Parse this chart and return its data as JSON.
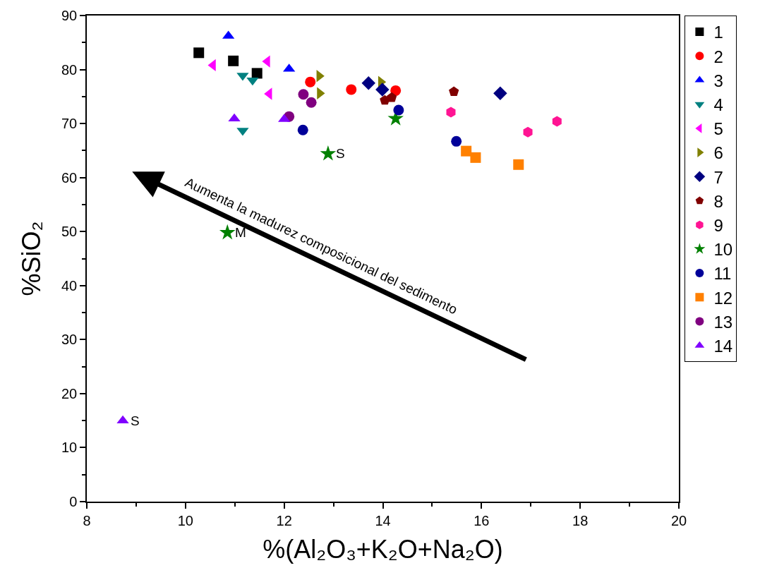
{
  "chart_data": {
    "type": "scatter",
    "xlabel": "%(Al₂O₃+K₂O+Na₂O)",
    "ylabel": "%SiO₂",
    "xlim": [
      8,
      20
    ],
    "xticks": [
      8,
      {
        "value": 9,
        "label": null
      },
      10,
      {
        "value": 11,
        "label": null
      },
      12,
      {
        "value": 13,
        "label": null
      },
      14,
      {
        "value": 15,
        "label": null
      },
      16,
      {
        "value": 17,
        "label": null
      },
      18,
      {
        "value": 19,
        "label": null
      },
      20
    ],
    "ylim": [
      0,
      90
    ],
    "yticks": [
      0,
      {
        "value": 5,
        "label": null
      },
      10,
      {
        "value": 15,
        "label": null
      },
      20,
      {
        "value": 25,
        "label": null
      },
      30,
      {
        "value": 35,
        "label": null
      },
      40,
      {
        "value": 45,
        "label": null
      },
      50,
      {
        "value": 55,
        "label": null
      },
      60,
      {
        "value": 65,
        "label": null
      },
      70,
      {
        "value": 75,
        "label": null
      },
      80,
      {
        "value": 85,
        "label": null
      },
      90
    ],
    "grid": false,
    "legend": "top right",
    "annotations": [
      "Aumenta la madurez composicional del sedimento",
      {
        "text": "S",
        "x": 12.89,
        "y": 64.4
      },
      {
        "text": "M",
        "x": 10.85,
        "y": 49.8
      },
      {
        "text": "S",
        "x": 8.73,
        "y": 15
      }
    ],
    "series": [
      {
        "name": "1",
        "color": "#000000",
        "marker": "square",
        "x": [
          10.27,
          10.97,
          11.45
        ],
        "values": [
          83.1,
          81.6,
          79.3
        ]
      },
      {
        "name": "2",
        "color": "#ff0000",
        "marker": "circle",
        "x": [
          12.53,
          13.36,
          14.26
        ],
        "values": [
          77.7,
          76.3,
          76.1
        ]
      },
      {
        "name": "3",
        "color": "#0000ff",
        "marker": "triangle",
        "x": [
          10.87,
          12.1
        ],
        "values": [
          86.2,
          80.1
        ]
      },
      {
        "name": "4",
        "color": "#008080",
        "marker": "triangle-down",
        "x": [
          11.16,
          11.36,
          11.16
        ],
        "values": [
          78.9,
          78.0,
          68.7
        ]
      },
      {
        "name": "5",
        "color": "#ff00ff",
        "marker": "triangle-left",
        "x": [
          10.56,
          11.66,
          11.7
        ],
        "values": [
          80.8,
          81.5,
          75.5
        ]
      },
      {
        "name": "6",
        "color": "#808000",
        "marker": "triangle-right",
        "x": [
          12.71,
          12.72,
          13.96
        ],
        "values": [
          78.8,
          75.6,
          77.7
        ]
      },
      {
        "name": "7",
        "color": "#000080",
        "marker": "diamond",
        "x": [
          13.71,
          13.99,
          16.38
        ],
        "values": [
          77.5,
          76.3,
          75.6
        ]
      },
      {
        "name": "8",
        "color": "#800000",
        "x": [
          14.04,
          14.18,
          15.44
        ],
        "values": [
          74.3,
          74.8,
          75.9
        ]
      },
      {
        "name": "9",
        "color": "#ff1493",
        "x": [
          15.38,
          16.94,
          17.53
        ],
        "values": [
          72.1,
          68.4,
          70.4
        ]
      },
      {
        "name": "10",
        "color": "#008000",
        "marker": "star",
        "x": [
          14.26,
          12.89,
          10.85
        ],
        "values": [
          70.9,
          64.4,
          49.8
        ]
      },
      {
        "name": "11",
        "color": "#000099",
        "marker": "circle",
        "x": [
          12.38,
          14.32,
          15.49
        ],
        "values": [
          68.8,
          72.5,
          66.7
        ]
      },
      {
        "name": "12",
        "color": "#ff8000",
        "marker": "square",
        "x": [
          15.69,
          15.88,
          16.75
        ],
        "values": [
          64.9,
          63.7,
          62.4
        ]
      },
      {
        "name": "13",
        "color": "#800080",
        "marker": "circle",
        "x": [
          12.39,
          12.55,
          12.1
        ],
        "values": [
          75.4,
          73.9,
          71.3
        ]
      },
      {
        "name": "14",
        "color": "#8000ff",
        "marker": "triangle",
        "x": [
          10.99,
          12.0,
          8.73
        ],
        "values": [
          70.9,
          70.8,
          15
        ]
      }
    ]
  }
}
